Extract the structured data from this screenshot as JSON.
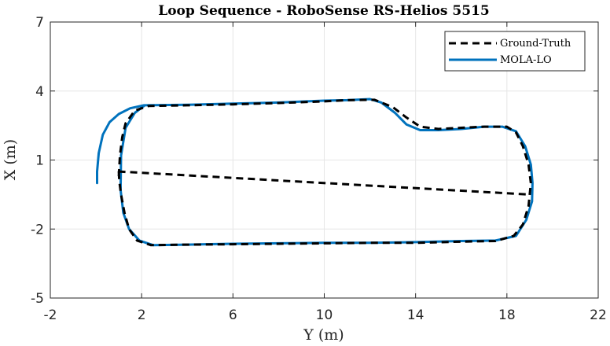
{
  "chart_data": {
    "type": "line",
    "title": "Loop Sequence - RoboSense RS-Helios 5515",
    "xlabel": "Y (m)",
    "ylabel": "X (m)",
    "xlim": [
      -2,
      22
    ],
    "ylim": [
      -5,
      7
    ],
    "xticks": [
      "-2",
      "2",
      "6",
      "10",
      "14",
      "18",
      "22"
    ],
    "yticks": [
      "-5",
      "-2",
      "1",
      "4",
      "7"
    ],
    "grid": true,
    "legend_position": "top-right",
    "colors": {
      "ground_truth": "#000000",
      "mola_lo": "#0072BD",
      "grid": "#e6e6e6",
      "axes": "#262626"
    },
    "series": [
      {
        "name": "Ground-Truth",
        "style": "dashed",
        "x": [
          1.0,
          1.05,
          1.15,
          1.3,
          1.7,
          2.3,
          4,
          6,
          8,
          10,
          11,
          12.2,
          13,
          13.6,
          14.2,
          15,
          16,
          17,
          18,
          18.4,
          18.7,
          18.95,
          19.05,
          18.95,
          18.7,
          18.3,
          17.5,
          16,
          14,
          12,
          10,
          8,
          6,
          4,
          2.4,
          1.8,
          1.45,
          1.25,
          1.1,
          1.02,
          1.0,
          1.0,
          1.0,
          19.0
        ],
        "y": [
          0.3,
          1.2,
          2.0,
          2.6,
          3.15,
          3.35,
          3.38,
          3.42,
          3.48,
          3.55,
          3.6,
          3.62,
          3.3,
          2.85,
          2.45,
          2.35,
          2.4,
          2.45,
          2.45,
          2.2,
          1.6,
          0.8,
          0.0,
          -1.0,
          -1.8,
          -2.3,
          -2.52,
          -2.55,
          -2.6,
          -2.6,
          -2.62,
          -2.64,
          -2.66,
          -2.68,
          -2.7,
          -2.5,
          -2.0,
          -1.3,
          -0.5,
          0.1,
          0.5,
          0.6,
          0.5,
          -0.5
        ]
      },
      {
        "name": "MOLA-LO",
        "style": "solid",
        "x": [
          0.05,
          0.05,
          0.12,
          0.3,
          0.6,
          1.0,
          1.5,
          2.1,
          4,
          6,
          8,
          10,
          11,
          12,
          12.5,
          13.1,
          13.6,
          14.2,
          15,
          16,
          17,
          17.8,
          18.4,
          18.8,
          19.05,
          19.12,
          19.1,
          18.85,
          18.4,
          17.5,
          16,
          14,
          12,
          10,
          8,
          6,
          4,
          2.5,
          1.9,
          1.45,
          1.2,
          1.08,
          1.1,
          1.3,
          1.7,
          2.1
        ],
        "y": [
          0.0,
          0.5,
          1.3,
          2.1,
          2.65,
          3.0,
          3.25,
          3.38,
          3.4,
          3.45,
          3.5,
          3.58,
          3.6,
          3.65,
          3.5,
          3.05,
          2.55,
          2.3,
          2.3,
          2.35,
          2.45,
          2.45,
          2.25,
          1.6,
          0.8,
          0.0,
          -0.8,
          -1.6,
          -2.3,
          -2.5,
          -2.52,
          -2.57,
          -2.6,
          -2.6,
          -2.62,
          -2.64,
          -2.68,
          -2.7,
          -2.5,
          -2.0,
          -1.3,
          -0.3,
          1.2,
          2.4,
          3.05,
          3.35
        ]
      }
    ]
  }
}
